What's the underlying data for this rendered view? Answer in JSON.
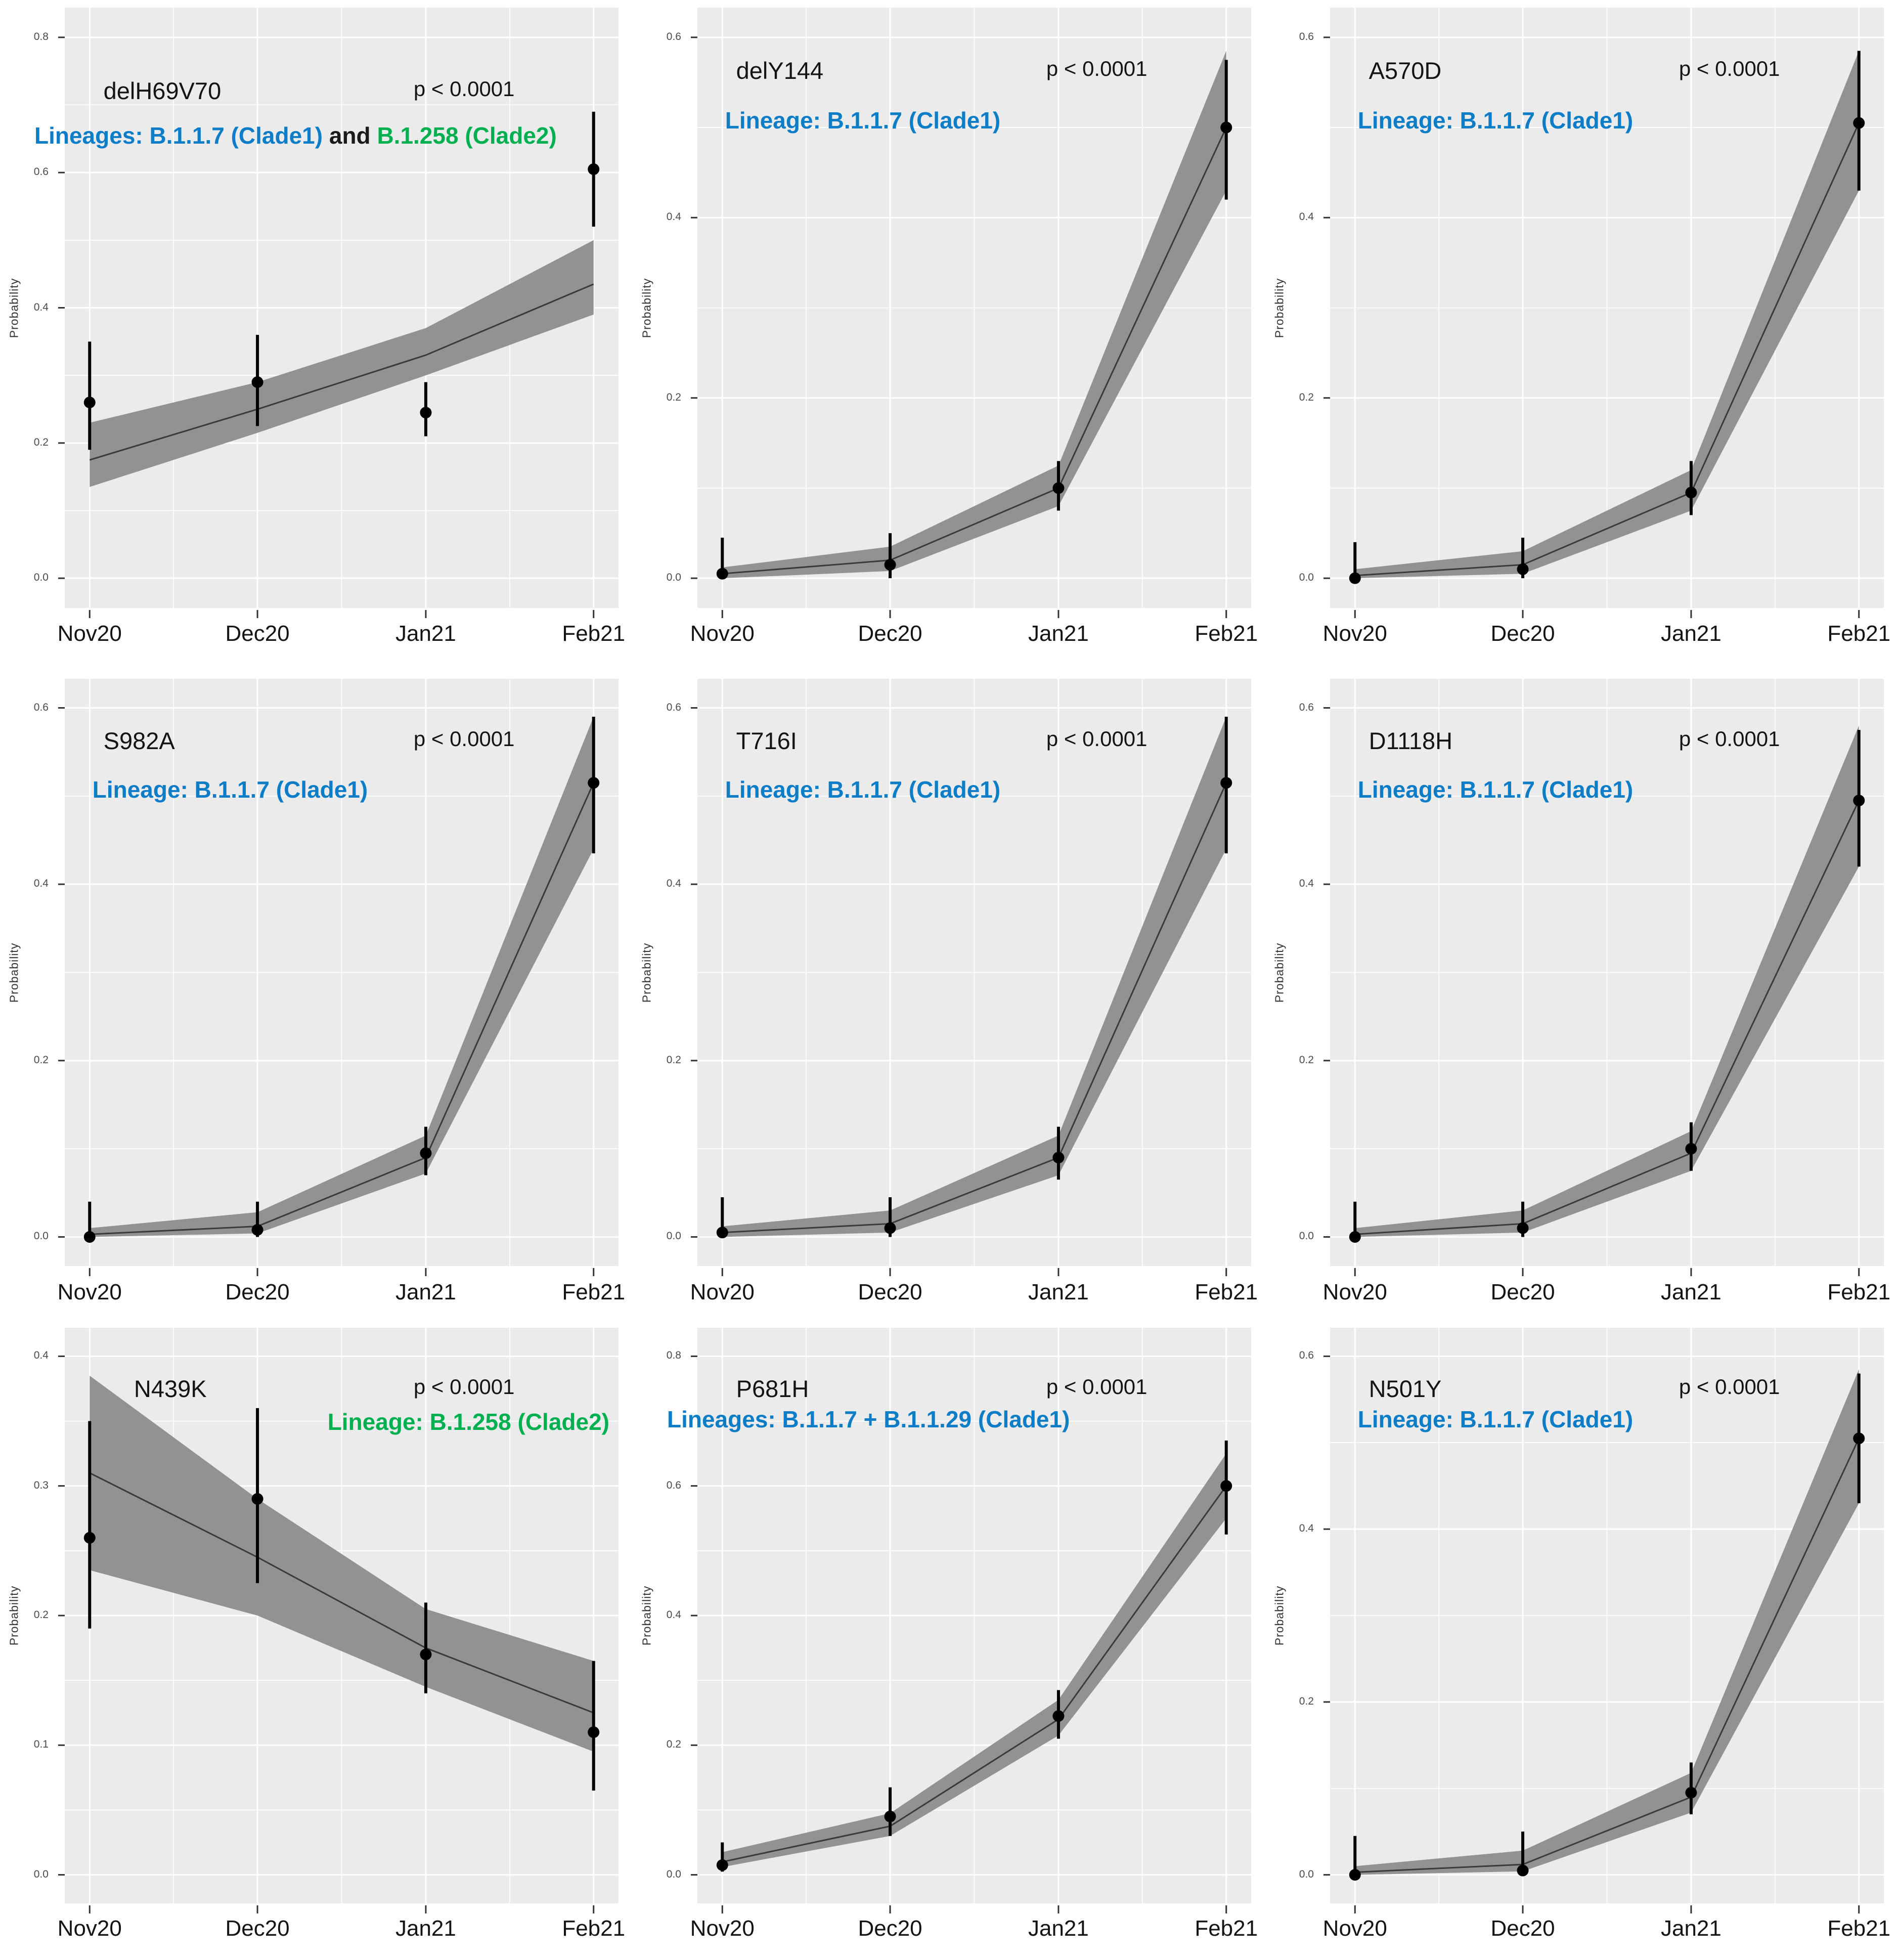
{
  "figure": {
    "xlabels": [
      "Nov20",
      "Dec20",
      "Jan21",
      "Feb21"
    ],
    "ylabel": "Probability"
  },
  "palette": {
    "blue": "#0c7dc6",
    "green": "#00b050",
    "black": "#1a1a1a",
    "panel_bg": "#ebebeb",
    "grid": "#ffffff",
    "ribbon": "#8d8d8d",
    "fit_line": "#3a3a3a",
    "point": "#000000",
    "tick_mark": "#333333"
  },
  "chart_data": [
    {
      "type": "line",
      "title": "delH69V70",
      "pvalue": "p < 0.0001",
      "lineage": [
        {
          "text": "Lineages: B.1.1.7 (Clade1)",
          "color": "blue"
        },
        {
          "text": " and ",
          "color": "black"
        },
        {
          "text": " B.1.258 (Clade2)",
          "color": "green"
        }
      ],
      "ylabel": "Probability",
      "x": [
        "Nov20",
        "Dec20",
        "Jan21",
        "Feb21"
      ],
      "ylim": [
        0,
        0.8
      ],
      "yticks": [
        "0.0",
        "0.2",
        "0.4",
        "0.6",
        "0.8"
      ],
      "points": {
        "y": [
          0.26,
          0.29,
          0.245,
          0.605
        ],
        "lo": [
          0.19,
          0.225,
          0.21,
          0.52
        ],
        "hi": [
          0.35,
          0.36,
          0.29,
          0.69
        ]
      },
      "fit": {
        "y": [
          0.175,
          0.25,
          0.33,
          0.435
        ],
        "lower": [
          0.135,
          0.215,
          0.3,
          0.39
        ],
        "upper": [
          0.23,
          0.29,
          0.37,
          0.5
        ]
      },
      "layout": {
        "lineage_pos": "left-edge",
        "grid": "on"
      }
    },
    {
      "type": "line",
      "title": "delY144",
      "pvalue": "p < 0.0001",
      "lineage": [
        {
          "text": "Lineage: B.1.1.7 (Clade1)",
          "color": "blue"
        }
      ],
      "ylabel": "Probability",
      "x": [
        "Nov20",
        "Dec20",
        "Jan21",
        "Feb21"
      ],
      "ylim": [
        0,
        0.6
      ],
      "yticks": [
        "0.0",
        "0.2",
        "0.4",
        "0.6"
      ],
      "points": {
        "y": [
          0.005,
          0.015,
          0.1,
          0.5
        ],
        "lo": [
          0,
          0,
          0.075,
          0.42
        ],
        "hi": [
          0.045,
          0.05,
          0.13,
          0.575
        ]
      },
      "fit": {
        "y": [
          0.005,
          0.02,
          0.1,
          0.5
        ],
        "lower": [
          0,
          0.008,
          0.08,
          0.43
        ],
        "upper": [
          0.012,
          0.035,
          0.125,
          0.585
        ]
      },
      "layout": {
        "lineage_pos": "indent",
        "grid": "on"
      }
    },
    {
      "type": "line",
      "title": "A570D",
      "pvalue": "p < 0.0001",
      "lineage": [
        {
          "text": "Lineage: B.1.1.7 (Clade1)",
          "color": "blue"
        }
      ],
      "ylabel": "Probability",
      "x": [
        "Nov20",
        "Dec20",
        "Jan21",
        "Feb21"
      ],
      "ylim": [
        0,
        0.6
      ],
      "yticks": [
        "0.0",
        "0.2",
        "0.4",
        "0.6"
      ],
      "points": {
        "y": [
          0.0,
          0.01,
          0.095,
          0.505
        ],
        "lo": [
          0,
          0,
          0.07,
          0.43
        ],
        "hi": [
          0.04,
          0.045,
          0.13,
          0.585
        ]
      },
      "fit": {
        "y": [
          0.003,
          0.015,
          0.095,
          0.505
        ],
        "lower": [
          0,
          0.005,
          0.075,
          0.43
        ],
        "upper": [
          0.01,
          0.03,
          0.12,
          0.585
        ]
      },
      "layout": {
        "lineage_pos": "indent",
        "grid": "on"
      }
    },
    {
      "type": "line",
      "title": "S982A",
      "pvalue": "p < 0.0001",
      "lineage": [
        {
          "text": "Lineage: B.1.1.7 (Clade1)",
          "color": "blue"
        }
      ],
      "ylabel": "Probability",
      "x": [
        "Nov20",
        "Dec20",
        "Jan21",
        "Feb21"
      ],
      "ylim": [
        0,
        0.6
      ],
      "yticks": [
        "0.0",
        "0.2",
        "0.4",
        "0.6"
      ],
      "points": {
        "y": [
          0.0,
          0.008,
          0.095,
          0.515
        ],
        "lo": [
          0,
          0,
          0.07,
          0.435
        ],
        "hi": [
          0.04,
          0.04,
          0.125,
          0.59
        ]
      },
      "fit": {
        "y": [
          0.003,
          0.012,
          0.09,
          0.515
        ],
        "lower": [
          0,
          0.004,
          0.072,
          0.44
        ],
        "upper": [
          0.01,
          0.028,
          0.115,
          0.59
        ]
      },
      "layout": {
        "lineage_pos": "indent",
        "grid": "on"
      }
    },
    {
      "type": "line",
      "title": "T716I",
      "pvalue": "p < 0.0001",
      "lineage": [
        {
          "text": "Lineage: B.1.1.7 (Clade1)",
          "color": "blue"
        }
      ],
      "ylabel": "Probability",
      "x": [
        "Nov20",
        "Dec20",
        "Jan21",
        "Feb21"
      ],
      "ylim": [
        0,
        0.6
      ],
      "yticks": [
        "0.0",
        "0.2",
        "0.4",
        "0.6"
      ],
      "points": {
        "y": [
          0.005,
          0.01,
          0.09,
          0.515
        ],
        "lo": [
          0,
          0,
          0.065,
          0.435
        ],
        "hi": [
          0.045,
          0.045,
          0.125,
          0.59
        ]
      },
      "fit": {
        "y": [
          0.005,
          0.015,
          0.09,
          0.515
        ],
        "lower": [
          0,
          0.005,
          0.07,
          0.44
        ],
        "upper": [
          0.012,
          0.03,
          0.115,
          0.59
        ]
      },
      "layout": {
        "lineage_pos": "indent",
        "grid": "on"
      }
    },
    {
      "type": "line",
      "title": "D1118H",
      "pvalue": "p < 0.0001",
      "lineage": [
        {
          "text": "Lineage: B.1.1.7 (Clade1)",
          "color": "blue"
        }
      ],
      "ylabel": "Probability",
      "x": [
        "Nov20",
        "Dec20",
        "Jan21",
        "Feb21"
      ],
      "ylim": [
        0,
        0.6
      ],
      "yticks": [
        "0.0",
        "0.2",
        "0.4",
        "0.6"
      ],
      "points": {
        "y": [
          0.0,
          0.01,
          0.1,
          0.495
        ],
        "lo": [
          0,
          0,
          0.075,
          0.42
        ],
        "hi": [
          0.04,
          0.04,
          0.13,
          0.575
        ]
      },
      "fit": {
        "y": [
          0.003,
          0.015,
          0.095,
          0.495
        ],
        "lower": [
          0,
          0.005,
          0.075,
          0.42
        ],
        "upper": [
          0.01,
          0.03,
          0.12,
          0.58
        ]
      },
      "layout": {
        "lineage_pos": "indent",
        "grid": "on"
      }
    },
    {
      "type": "line",
      "title": "N439K",
      "pvalue": "p < 0.0001",
      "lineage": [
        {
          "text": "Lineage: B.1.258 (Clade2)",
          "color": "green"
        }
      ],
      "ylabel": "Probability",
      "x": [
        "Nov20",
        "Dec20",
        "Jan21",
        "Feb21"
      ],
      "ylim": [
        0,
        0.4
      ],
      "yticks": [
        "0.0",
        "0.1",
        "0.2",
        "0.3",
        "0.4"
      ],
      "points": {
        "y": [
          0.26,
          0.29,
          0.17,
          0.11
        ],
        "lo": [
          0.19,
          0.225,
          0.14,
          0.065
        ],
        "hi": [
          0.35,
          0.36,
          0.21,
          0.165
        ]
      },
      "fit": {
        "y": [
          0.31,
          0.245,
          0.175,
          0.125
        ],
        "lower": [
          0.235,
          0.2,
          0.145,
          0.095
        ],
        "upper": [
          0.385,
          0.29,
          0.205,
          0.165
        ]
      },
      "layout": {
        "lineage_pos": "mid-right",
        "grid": "on"
      }
    },
    {
      "type": "line",
      "title": "P681H",
      "pvalue": "p < 0.0001",
      "lineage": [
        {
          "text": "Lineages: B.1.1.7 + B.1.1.29 (Clade1)",
          "color": "blue"
        }
      ],
      "ylabel": "Probability",
      "x": [
        "Nov20",
        "Dec20",
        "Jan21",
        "Feb21"
      ],
      "ylim": [
        0,
        0.8
      ],
      "yticks": [
        "0.0",
        "0.2",
        "0.4",
        "0.6",
        "0.8"
      ],
      "points": {
        "y": [
          0.015,
          0.09,
          0.245,
          0.6
        ],
        "lo": [
          0.005,
          0.06,
          0.21,
          0.525
        ],
        "hi": [
          0.05,
          0.135,
          0.285,
          0.67
        ]
      },
      "fit": {
        "y": [
          0.02,
          0.075,
          0.24,
          0.6
        ],
        "lower": [
          0.012,
          0.06,
          0.215,
          0.55
        ],
        "upper": [
          0.035,
          0.095,
          0.27,
          0.65
        ]
      },
      "layout": {
        "lineage_pos": "left-edge",
        "grid": "on"
      }
    },
    {
      "type": "line",
      "title": "N501Y",
      "pvalue": "p < 0.0001",
      "lineage": [
        {
          "text": "Lineage: B.1.1.7 (Clade1)",
          "color": "blue"
        }
      ],
      "ylabel": "Probability",
      "x": [
        "Nov20",
        "Dec20",
        "Jan21",
        "Feb21"
      ],
      "ylim": [
        0,
        0.6
      ],
      "yticks": [
        "0.0",
        "0.2",
        "0.4",
        "0.6"
      ],
      "points": {
        "y": [
          0.0,
          0.005,
          0.095,
          0.505
        ],
        "lo": [
          0,
          0,
          0.07,
          0.43
        ],
        "hi": [
          0.045,
          0.05,
          0.13,
          0.58
        ]
      },
      "fit": {
        "y": [
          0.003,
          0.012,
          0.09,
          0.505
        ],
        "lower": [
          0,
          0.004,
          0.072,
          0.43
        ],
        "upper": [
          0.01,
          0.028,
          0.118,
          0.585
        ]
      },
      "layout": {
        "lineage_pos": "indent",
        "grid": "on"
      }
    }
  ]
}
